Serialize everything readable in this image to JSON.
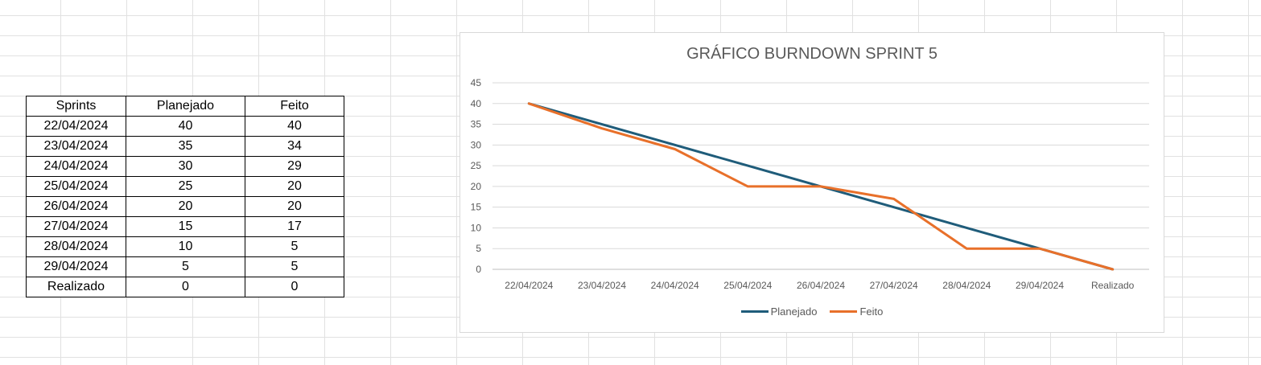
{
  "table": {
    "headers": [
      "Sprints",
      "Planejado",
      "Feito"
    ],
    "rows": [
      [
        "22/04/2024",
        "40",
        "40"
      ],
      [
        "23/04/2024",
        "35",
        "34"
      ],
      [
        "24/04/2024",
        "30",
        "29"
      ],
      [
        "25/04/2024",
        "25",
        "20"
      ],
      [
        "26/04/2024",
        "20",
        "20"
      ],
      [
        "27/04/2024",
        "15",
        "17"
      ],
      [
        "28/04/2024",
        "10",
        "5"
      ],
      [
        "29/04/2024",
        "5",
        "5"
      ],
      [
        "Realizado",
        "0",
        "0"
      ]
    ]
  },
  "chart_data": {
    "type": "line",
    "title": "GRÁFICO BURNDOWN SPRINT 5",
    "categories": [
      "22/04/2024",
      "23/04/2024",
      "24/04/2024",
      "25/04/2024",
      "26/04/2024",
      "27/04/2024",
      "28/04/2024",
      "29/04/2024",
      "Realizado"
    ],
    "series": [
      {
        "name": "Planejado",
        "values": [
          40,
          35,
          30,
          25,
          20,
          15,
          10,
          5,
          0
        ],
        "color": "#1f5c7a"
      },
      {
        "name": "Feito",
        "values": [
          40,
          34,
          29,
          20,
          20,
          17,
          5,
          5,
          0
        ],
        "color": "#e8702a"
      }
    ],
    "ylim": [
      0,
      45
    ],
    "yticks": [
      0,
      5,
      10,
      15,
      20,
      25,
      30,
      35,
      40,
      45
    ],
    "xlabel": "",
    "ylabel": "",
    "grid": true,
    "legend": "bottom"
  }
}
